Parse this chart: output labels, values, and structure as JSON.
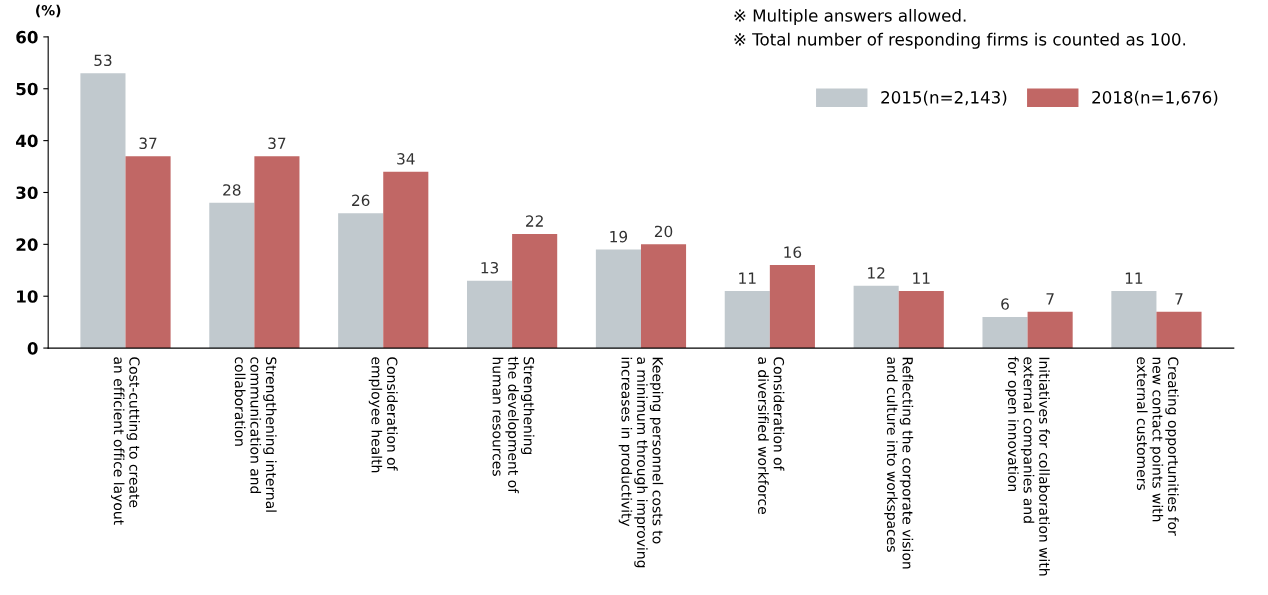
{
  "chart_data": {
    "type": "bar",
    "ylabel": "(%)",
    "categories": [
      "Cost-cutting to create\nan efficient office layout",
      "Strengthening internal\ncommunication and\ncollaboration",
      "Consideration of\nemployee health",
      "Strengthening\nthe development of\nhuman resources",
      "Keeping personnel costs to\na minimum through improving\nincreases in productivity",
      "Consideration of\na diversified workforce",
      "Reflecting the corporate vision\nand culture into workspaces",
      "Initiatives for collaboration with\nexternal companies and\nfor open innovation",
      "Creating opportunities for\nnew contact points with\nexternal customers"
    ],
    "series": [
      {
        "name": "2015(n=2,143)",
        "color": "#c1c9ce",
        "values": [
          53,
          28,
          26,
          13,
          19,
          11,
          12,
          6,
          11
        ]
      },
      {
        "name": "2018(n=1,676)",
        "color": "#c16765",
        "values": [
          37,
          37,
          34,
          22,
          20,
          16,
          11,
          7,
          7
        ]
      }
    ],
    "ylim": [
      0,
      60
    ],
    "yticks": [
      0,
      10,
      20,
      30,
      40,
      50,
      60
    ],
    "grid": false,
    "legend": "top right",
    "data_labels": true,
    "annotations": [
      "※ Multiple answers allowed.",
      "※ Total number of responding firms is counted as 100."
    ]
  }
}
